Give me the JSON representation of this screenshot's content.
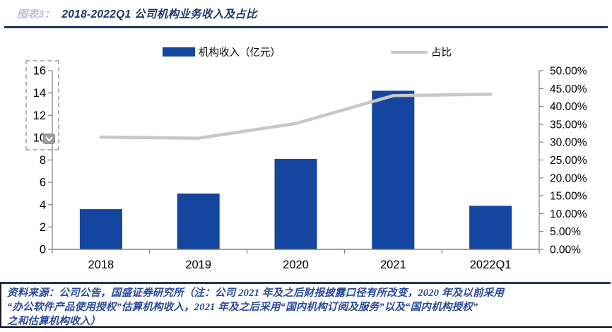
{
  "header": {
    "figure_prefix": "图表3：",
    "title": "2018-2022Q1 公司机构业务收入及占比"
  },
  "legend": {
    "bar_label": "机构收入（亿元）",
    "line_label": "占比"
  },
  "chart_data": {
    "type": "bar",
    "subtype": "bar+line combo, dual axis",
    "categories": [
      "2018",
      "2019",
      "2020",
      "2021",
      "2022Q1"
    ],
    "series": [
      {
        "name": "机构收入（亿元）",
        "type": "bar",
        "axis": "left",
        "values": [
          3.6,
          5.0,
          8.1,
          14.2,
          3.9
        ]
      },
      {
        "name": "占比",
        "type": "line",
        "axis": "right",
        "values_percent": [
          31.4,
          31.1,
          35.2,
          43.0,
          43.4
        ]
      }
    ],
    "left_axis": {
      "min": 0,
      "max": 16,
      "step": 2,
      "tick_labels": [
        "0",
        "2",
        "4",
        "6",
        "8",
        "10",
        "12",
        "14",
        "16"
      ]
    },
    "right_axis": {
      "min": 0,
      "max": 50,
      "step": 5,
      "tick_labels": [
        "0.00%",
        "5.00%",
        "10.00%",
        "15.00%",
        "20.00%",
        "25.00%",
        "30.00%",
        "35.00%",
        "40.00%",
        "45.00%",
        "50.00%"
      ]
    },
    "grid": false,
    "legend_position": "top",
    "colors": {
      "bar": "#14469F",
      "line": "#C8C8C8",
      "axis": "#7f7f7f"
    }
  },
  "overlay": {
    "icon": "chevron-down-icon"
  },
  "footer": {
    "lines": [
      "资料来源：公司公告，国盛证券研究所（注：公司 2021 年及之后财报披露口径有所改变，2020 年及以前采用",
      "“办公软件产品使用授权”估算机构收入，2021 年及之后采用“国内机构订阅及服务”以及“国内机构授权”",
      "之和估算机构收入）"
    ]
  },
  "theme": {
    "title_navy": "#1F3864",
    "footer_blue": "#2B4A9B",
    "bottom_border": "#000000"
  }
}
